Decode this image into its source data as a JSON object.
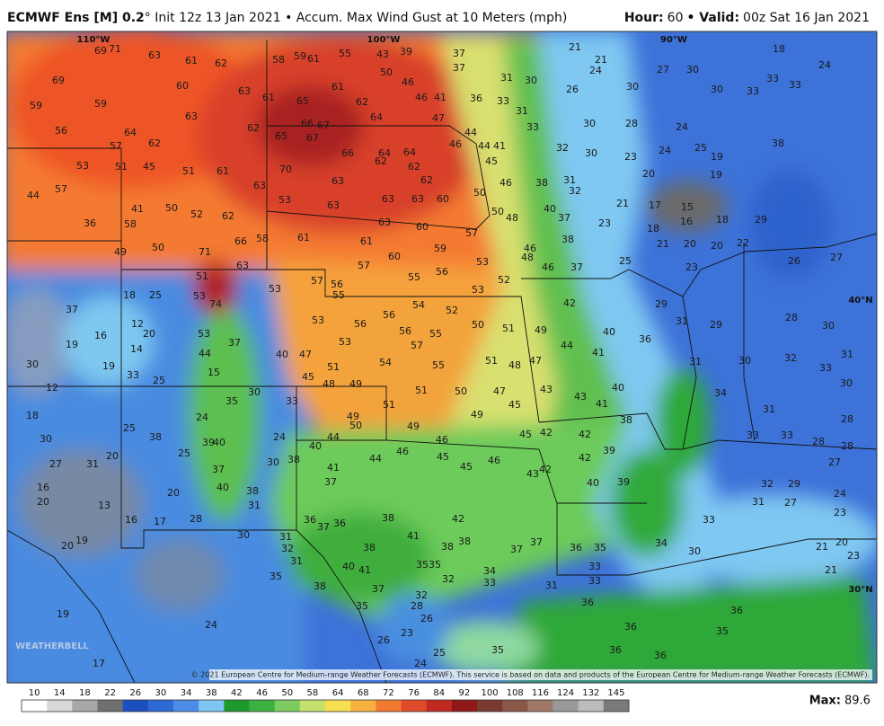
{
  "header": {
    "model": "ECMWF Ens [M] 0.2",
    "description": "° Init 12z 13 Jan 2021 • Accum. Max Wind Gust at 10 Meters (mph)",
    "hour_label": "Hour:",
    "hour": "60",
    "valid_label": "• Valid:",
    "valid": "00z Sat 16 Jan 2021"
  },
  "map": {
    "coords": {
      "lon110": "110°W",
      "lon100": "100°W",
      "lon90": "90°W",
      "lat40": "40°N",
      "lat30": "30°N"
    },
    "watermark": "WEATHERBELL",
    "copyright": "© 2021 European Centre for Medium-range Weather Forecasts (ECMWF). This service is based on data and products of the European Centre for Medium-range Weather Forecasts (ECMWF).",
    "labels": [
      69,
      71,
      63,
      61,
      62,
      58,
      59,
      61,
      55,
      43,
      39,
      37,
      37,
      69,
      60,
      63,
      61,
      65,
      61,
      62,
      64,
      50,
      46,
      46,
      41,
      36,
      33,
      31,
      30,
      26,
      59,
      59,
      63,
      62,
      66,
      67,
      67,
      65,
      47,
      44,
      31,
      33,
      30,
      28,
      24,
      56,
      64,
      62,
      57,
      66,
      64,
      64,
      62,
      62,
      46,
      44,
      41,
      45,
      32,
      30,
      23,
      24,
      25,
      19,
      38,
      53,
      51,
      45,
      51,
      61,
      70,
      63,
      62,
      46,
      38,
      31,
      32,
      20,
      19,
      15,
      17,
      16,
      18,
      29,
      44,
      57,
      41,
      50,
      52,
      62,
      63,
      53,
      63,
      63,
      63,
      60,
      50,
      50,
      48,
      40,
      37,
      23,
      21,
      18,
      21,
      20,
      20,
      22,
      36,
      58,
      66,
      58,
      61,
      61,
      63,
      60,
      57,
      46,
      48,
      38,
      59,
      60,
      49,
      50,
      71,
      63,
      57,
      53,
      46,
      37,
      25,
      23,
      26,
      27,
      51,
      57,
      55,
      56,
      53,
      52,
      53,
      56,
      55,
      53,
      74,
      54,
      52,
      53,
      56,
      56,
      56,
      55,
      50,
      51,
      49,
      42,
      40,
      36,
      57,
      53,
      54,
      55,
      51,
      48,
      47,
      44,
      41,
      51,
      49,
      48,
      51,
      50,
      47,
      43,
      43,
      45,
      41,
      40,
      50,
      49,
      51,
      49,
      49,
      46,
      45,
      42,
      42,
      39,
      38,
      44,
      44,
      46,
      45,
      45,
      46,
      43,
      42,
      42,
      40,
      39,
      30,
      12,
      18,
      27,
      16,
      20,
      13,
      16,
      17,
      20,
      19,
      19,
      24,
      17,
      24,
      26,
      23,
      28,
      32,
      26,
      25,
      35,
      36,
      36,
      36,
      36,
      35,
      36,
      34,
      30,
      33,
      32,
      29,
      31,
      27,
      24,
      23,
      20,
      21,
      23,
      21,
      33,
      33,
      28,
      28,
      27,
      28,
      31,
      33,
      30,
      34,
      31,
      28,
      30,
      32,
      30,
      31,
      29,
      31,
      29,
      18,
      24,
      27,
      30,
      33,
      33,
      30,
      33,
      21,
      24,
      21,
      30,
      38,
      41,
      42,
      38,
      38,
      37,
      37,
      40,
      41,
      38,
      35,
      35,
      34,
      33,
      32,
      31,
      33,
      33,
      36,
      35,
      38,
      37,
      35,
      31,
      32,
      31,
      30,
      28,
      35,
      36,
      37,
      36,
      37,
      41,
      40,
      38,
      30,
      24,
      25,
      39,
      40,
      37,
      40,
      38,
      31,
      38,
      25,
      20,
      31,
      30,
      20,
      24,
      35,
      30,
      33,
      15,
      25,
      33,
      19,
      14,
      12,
      16,
      20,
      19,
      37,
      18,
      25,
      53,
      44,
      37,
      40,
      47,
      45
    ]
  },
  "colorbar": {
    "ticks": [
      10,
      14,
      18,
      22,
      26,
      30,
      34,
      38,
      42,
      46,
      50,
      58,
      64,
      68,
      72,
      76,
      84,
      92,
      100,
      108,
      116,
      124,
      132,
      145
    ],
    "colors": [
      "#ffffff",
      "#d8d8d8",
      "#a8a8a8",
      "#707070",
      "#1c4fc0",
      "#2d6ad6",
      "#4a8ce6",
      "#7ec6f2",
      "#1f9a2f",
      "#3cb040",
      "#7ccc60",
      "#c6e070",
      "#f6e050",
      "#f8b040",
      "#f27a30",
      "#e04a28",
      "#c02a20",
      "#901818",
      "#7a3a30",
      "#8a5848",
      "#a07868",
      "#9a9a9a",
      "#bcbcbc",
      "#7a7a7a"
    ]
  },
  "footer": {
    "max_label": "Max:",
    "max": "89.6"
  }
}
